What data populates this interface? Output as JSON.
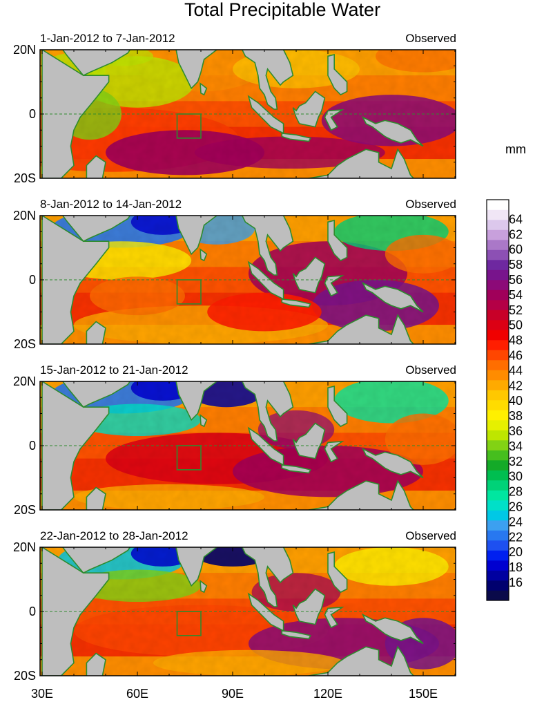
{
  "title": "Total Precipitable Water",
  "units_label": "mm",
  "panels": [
    {
      "date_range": "1-Jan-2012 to 7-Jan-2012",
      "label": "Observed"
    },
    {
      "date_range": "8-Jan-2012 to 14-Jan-2012",
      "label": "Observed"
    },
    {
      "date_range": "15-Jan-2012 to 21-Jan-2012",
      "label": "Observed"
    },
    {
      "date_range": "22-Jan-2012 to 28-Jan-2012",
      "label": "Observed"
    }
  ],
  "lat_labels": [
    "20N",
    "0",
    "20S"
  ],
  "lon_labels": [
    "30E",
    "60E",
    "90E",
    "120E",
    "150E"
  ],
  "colorbar": {
    "tick_labels": [
      "16",
      "18",
      "20",
      "22",
      "24",
      "26",
      "28",
      "30",
      "32",
      "34",
      "36",
      "38",
      "40",
      "42",
      "44",
      "46",
      "48",
      "50",
      "52",
      "54",
      "56",
      "58",
      "60",
      "62",
      "64"
    ],
    "colors": [
      "#0a0a4a",
      "#00006e",
      "#0000a0",
      "#0000d0",
      "#0020f0",
      "#1e50f0",
      "#2878f0",
      "#3ca0f0",
      "#00c8e6",
      "#00e0c8",
      "#00e6a0",
      "#00d278",
      "#00be50",
      "#14aa28",
      "#46be1e",
      "#82d214",
      "#bee600",
      "#e6f000",
      "#fff000",
      "#ffdc00",
      "#ffc800",
      "#ffaa00",
      "#ff8c00",
      "#ff6e00",
      "#ff4600",
      "#ff1e00",
      "#f00000",
      "#dc0014",
      "#c80028",
      "#b40046",
      "#a0005a",
      "#8c0a78",
      "#78148c",
      "#6e28a0",
      "#8c50b4",
      "#aa78c8",
      "#c8a0dc",
      "#dcc8ec",
      "#f0e6f6",
      "#ffffff"
    ]
  }
}
